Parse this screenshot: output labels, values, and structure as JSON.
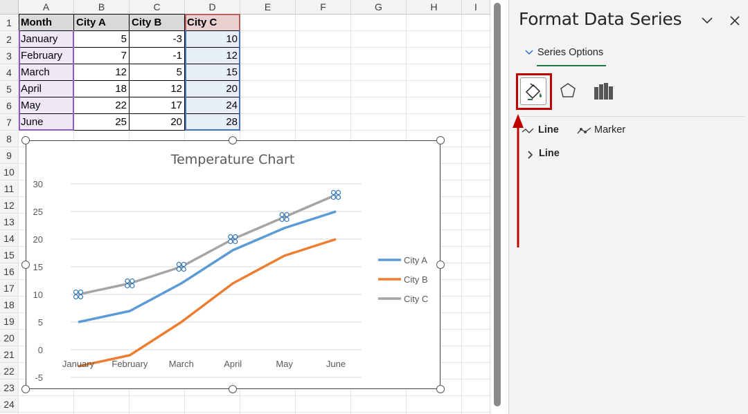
{
  "sheet": {
    "columns": [
      "A",
      "B",
      "C",
      "D",
      "E",
      "F",
      "G",
      "H",
      "I"
    ],
    "rows": [
      "1",
      "2",
      "3",
      "4",
      "5",
      "6",
      "7",
      "8",
      "9",
      "10",
      "11",
      "12",
      "13",
      "14",
      "15",
      "16",
      "17",
      "18",
      "19",
      "20",
      "21",
      "22",
      "23",
      "24"
    ],
    "table": {
      "headers": [
        "Month",
        "City A",
        "City B",
        "City C"
      ],
      "rows": [
        [
          "January",
          "5",
          "-3",
          "10"
        ],
        [
          "February",
          "7",
          "-1",
          "12"
        ],
        [
          "March",
          "12",
          "5",
          "15"
        ],
        [
          "April",
          "18",
          "12",
          "20"
        ],
        [
          "May",
          "22",
          "17",
          "24"
        ],
        [
          "June",
          "25",
          "20",
          "28"
        ]
      ]
    }
  },
  "chart_data": {
    "type": "line",
    "title": "Temperature Chart",
    "categories": [
      "January",
      "February",
      "March",
      "April",
      "May",
      "June"
    ],
    "series": [
      {
        "name": "City A",
        "values": [
          5,
          7,
          12,
          18,
          22,
          25
        ],
        "color": "#5b9bd5"
      },
      {
        "name": "City B",
        "values": [
          -3,
          -1,
          5,
          12,
          17,
          20
        ],
        "color": "#ed7d31"
      },
      {
        "name": "City C",
        "values": [
          10,
          12,
          15,
          20,
          24,
          28
        ],
        "color": "#a5a5a5"
      }
    ],
    "y_ticks": [
      "30",
      "25",
      "20",
      "15",
      "10",
      "5",
      "0",
      "-5"
    ],
    "ylim": [
      -5,
      30
    ],
    "grid": true,
    "legend": "right",
    "selected_series": "City C"
  },
  "pane": {
    "title": "Format Data Series",
    "collapse_icon": "chevron-down-icon",
    "close_icon": "close-icon",
    "series_options_label": "Series Options",
    "tabs": [
      "fill-line-icon",
      "effects-pentagon-icon",
      "series-options-bar-icon"
    ],
    "subtab_line": "Line",
    "subtab_marker": "Marker",
    "section_line": "Line",
    "highlight_color": "#c00000",
    "accent_color": "#217346"
  }
}
